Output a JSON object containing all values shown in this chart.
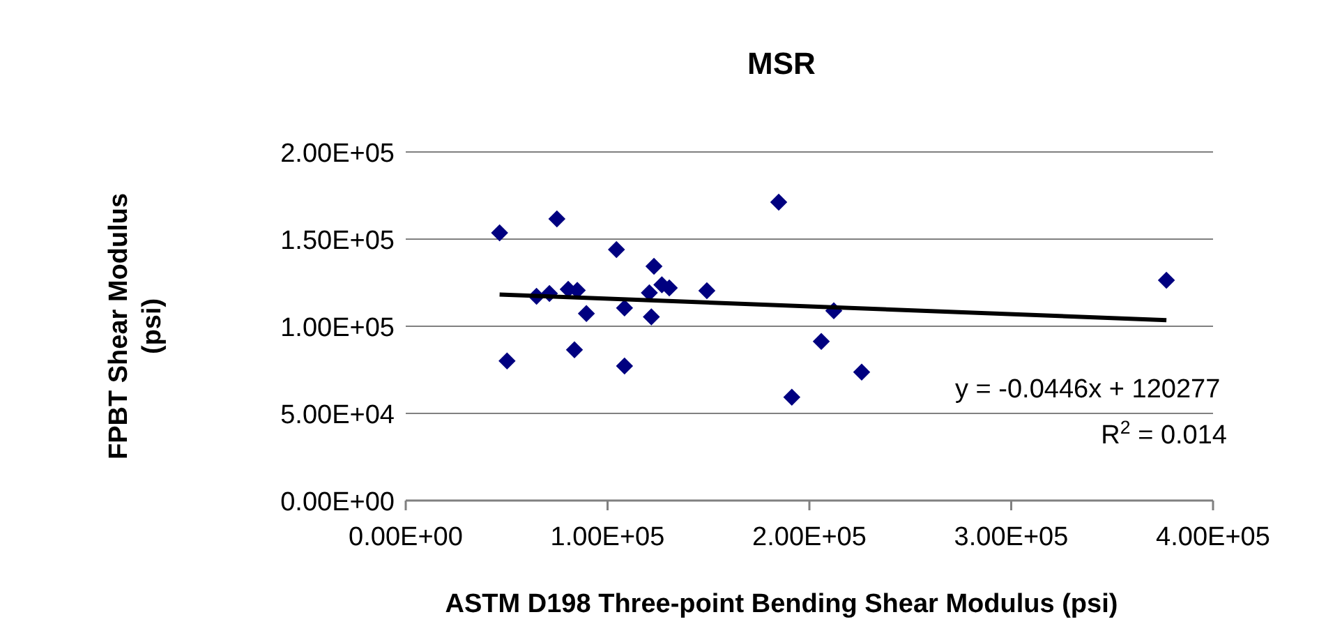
{
  "chart_data": {
    "type": "scatter",
    "title": "MSR",
    "xlabel": "ASTM D198 Three-point Bending Shear Modulus (psi)",
    "ylabel": "FPBT Shear Modulus (psi)",
    "xlim": [
      0,
      400000
    ],
    "xticks": [
      {
        "value": 0,
        "label": "0.00E+00"
      },
      {
        "value": 100000,
        "label": "1.00E+05"
      },
      {
        "value": 200000,
        "label": "2.00E+05"
      },
      {
        "value": 300000,
        "label": "3.00E+05"
      },
      {
        "value": 400000,
        "label": "4.00E+05"
      }
    ],
    "ylim": [
      0,
      200000
    ],
    "yticks": [
      {
        "value": 0,
        "label": "0.00E+00"
      },
      {
        "value": 50000,
        "label": "5.00E+04"
      },
      {
        "value": 100000,
        "label": "1.00E+05"
      },
      {
        "value": 150000,
        "label": "1.50E+05"
      },
      {
        "value": 200000,
        "label": "2.00E+05"
      }
    ],
    "grid": "y",
    "series": [
      {
        "color": "#000080",
        "marker": "diamond",
        "x": [
          46500,
          74900,
          50200,
          64800,
          71200,
          80500,
          85000,
          89500,
          83600,
          104400,
          108400,
          108400,
          123000,
          120700,
          121700,
          126900,
          130600,
          149200,
          184800,
          191300,
          205900,
          212100,
          225900,
          376900
        ],
        "values": [
          153600,
          161600,
          80100,
          117200,
          118800,
          121200,
          120600,
          107300,
          86500,
          144000,
          110500,
          77200,
          134400,
          119200,
          105400,
          123800,
          122000,
          120400,
          171200,
          59300,
          91300,
          108900,
          73700,
          126400
        ]
      },
      {
        "type": "line",
        "color": "#000000",
        "line_style": "solid",
        "marker": "none",
        "x": [
          46500,
          376900
        ],
        "values": [
          118200,
          103500
        ]
      }
    ],
    "annotations": [
      "y = -0.0446x + 120277",
      "R$^{2}$ = 0.014"
    ]
  }
}
